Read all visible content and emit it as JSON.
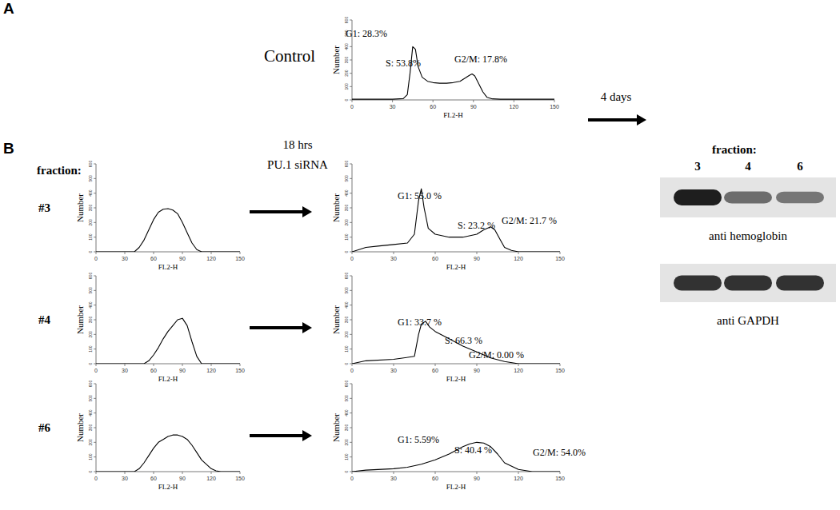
{
  "chart_data": [
    {
      "type": "line",
      "title": "Control",
      "x_label": "FL2-H",
      "y_label": "Number",
      "annotations": [
        "G1: 28.3%",
        "S: 53.8%",
        "G2/M: 17.8%"
      ],
      "x": [
        0,
        30,
        38,
        41,
        43,
        45,
        47,
        49,
        52,
        56,
        60,
        65,
        70,
        75,
        80,
        84,
        87,
        89,
        91,
        94,
        97,
        100,
        104,
        110,
        150
      ],
      "values": [
        5,
        5,
        10,
        40,
        200,
        400,
        380,
        250,
        170,
        140,
        130,
        125,
        125,
        130,
        140,
        165,
        185,
        195,
        180,
        120,
        60,
        20,
        8,
        5,
        5
      ],
      "xlim": [
        0,
        150
      ],
      "ylim": [
        0,
        600
      ],
      "xticks": [
        0,
        30,
        60,
        90,
        120,
        150
      ],
      "yticks": [
        0,
        100,
        200,
        300,
        400,
        500,
        600
      ],
      "color": "#000000"
    },
    {
      "type": "line",
      "title": "#3",
      "x_label": "FL2-H",
      "y_label": "Number",
      "x": [
        0,
        40,
        45,
        50,
        55,
        60,
        65,
        70,
        75,
        80,
        85,
        90,
        95,
        100,
        105,
        110,
        150
      ],
      "values": [
        0,
        0,
        30,
        80,
        150,
        220,
        270,
        290,
        295,
        285,
        260,
        200,
        130,
        60,
        15,
        0,
        0
      ],
      "xlim": [
        0,
        150
      ],
      "ylim": [
        0,
        600
      ],
      "xticks": [
        0,
        30,
        60,
        90,
        120,
        150
      ],
      "yticks": [
        0,
        100,
        200,
        300,
        400,
        500,
        600
      ],
      "color": "#000000"
    },
    {
      "type": "line",
      "title": "#4",
      "x_label": "FL2-H",
      "y_label": "Number",
      "x": [
        0,
        50,
        55,
        60,
        65,
        70,
        75,
        80,
        85,
        90,
        95,
        100,
        105,
        110,
        150
      ],
      "values": [
        0,
        0,
        20,
        60,
        110,
        170,
        220,
        260,
        300,
        310,
        260,
        150,
        50,
        0,
        0
      ],
      "xlim": [
        0,
        150
      ],
      "ylim": [
        0,
        600
      ],
      "xticks": [
        0,
        30,
        60,
        90,
        120,
        150
      ],
      "yticks": [
        0,
        100,
        200,
        300,
        400,
        500,
        600
      ],
      "color": "#000000"
    },
    {
      "type": "line",
      "title": "#6",
      "x_label": "FL2-H",
      "y_label": "Number",
      "x": [
        0,
        40,
        45,
        50,
        55,
        60,
        65,
        70,
        75,
        80,
        85,
        90,
        95,
        100,
        105,
        110,
        115,
        120,
        125,
        130,
        150
      ],
      "values": [
        0,
        0,
        20,
        60,
        110,
        160,
        200,
        220,
        240,
        250,
        250,
        240,
        220,
        180,
        130,
        80,
        50,
        20,
        5,
        0,
        0
      ],
      "xlim": [
        0,
        150
      ],
      "ylim": [
        0,
        600
      ],
      "xticks": [
        0,
        30,
        60,
        90,
        120,
        150
      ],
      "yticks": [
        0,
        100,
        200,
        300,
        400,
        500,
        600
      ],
      "color": "#000000"
    },
    {
      "type": "line",
      "x_label": "FL2-H",
      "y_label": "Number",
      "annotations": [
        "G1: 55.0 %",
        "S: 23.2 %",
        "G2/M: 21.7 %"
      ],
      "x": [
        0,
        10,
        20,
        30,
        40,
        45,
        48,
        50,
        52,
        55,
        60,
        70,
        80,
        90,
        95,
        100,
        103,
        107,
        110,
        115,
        120,
        150
      ],
      "values": [
        0,
        30,
        40,
        50,
        60,
        120,
        350,
        430,
        300,
        160,
        120,
        100,
        100,
        120,
        150,
        170,
        150,
        80,
        30,
        10,
        0,
        0
      ],
      "xlim": [
        0,
        150
      ],
      "ylim": [
        0,
        600
      ],
      "xticks": [
        0,
        30,
        60,
        90,
        120,
        150
      ],
      "yticks": [
        0,
        100,
        200,
        300,
        400,
        500,
        600
      ],
      "color": "#000000"
    },
    {
      "type": "line",
      "x_label": "FL2-H",
      "y_label": "Number",
      "annotations": [
        "G1: 33.7 %",
        "S: 66.3 %",
        "G2/M: 0.00 %"
      ],
      "x": [
        0,
        10,
        30,
        45,
        48,
        50,
        53,
        56,
        60,
        70,
        80,
        90,
        100,
        110,
        120,
        150
      ],
      "values": [
        0,
        20,
        30,
        50,
        200,
        270,
        290,
        250,
        220,
        170,
        120,
        80,
        40,
        15,
        0,
        0
      ],
      "xlim": [
        0,
        150
      ],
      "ylim": [
        0,
        600
      ],
      "xticks": [
        0,
        30,
        60,
        90,
        120,
        150
      ],
      "yticks": [
        0,
        100,
        200,
        300,
        400,
        500,
        600
      ],
      "color": "#000000"
    },
    {
      "type": "line",
      "x_label": "FL2-H",
      "y_label": "Number",
      "annotations": [
        "G1: 5.59%",
        "S: 40.4 %",
        "G2/M: 54.0%"
      ],
      "x": [
        0,
        10,
        30,
        40,
        50,
        60,
        70,
        80,
        85,
        90,
        95,
        100,
        105,
        110,
        120,
        130,
        150
      ],
      "values": [
        0,
        10,
        20,
        30,
        50,
        80,
        120,
        170,
        190,
        200,
        195,
        170,
        120,
        60,
        15,
        0,
        0
      ],
      "xlim": [
        0,
        150
      ],
      "ylim": [
        0,
        600
      ],
      "xticks": [
        0,
        30,
        60,
        90,
        120,
        150
      ],
      "yticks": [
        0,
        100,
        200,
        300,
        400,
        500,
        600
      ],
      "color": "#000000"
    }
  ],
  "figure": {
    "panel_labels": [
      "A",
      "B"
    ],
    "fraction_label": "fraction:",
    "treatment": [
      "18 hrs",
      "PU.1 siRNA"
    ],
    "incubation": "4 days",
    "blot": {
      "title": "fraction:",
      "lanes": [
        "3",
        "4",
        "6"
      ],
      "rows": [
        {
          "label": "anti hemoglobin",
          "intensity": [
            1,
            0.6,
            0.55
          ]
        },
        {
          "label": "anti GAPDH",
          "intensity": [
            0.9,
            0.9,
            0.9
          ]
        }
      ]
    }
  }
}
